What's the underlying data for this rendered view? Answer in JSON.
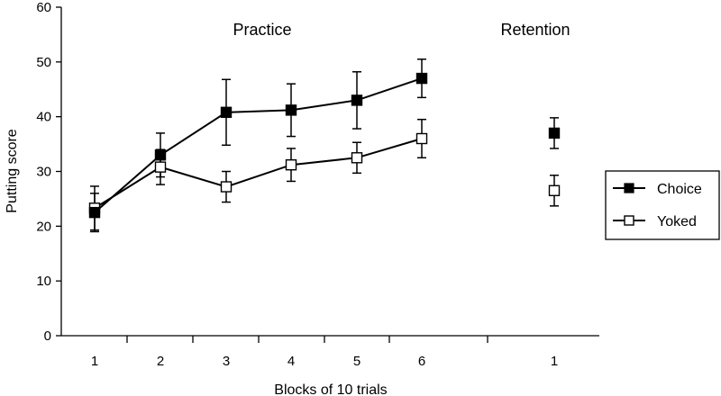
{
  "chart_data": {
    "type": "line",
    "xlabel": "Blocks of 10 trials",
    "ylabel": "Putting score",
    "ylim": [
      0,
      60
    ],
    "yticks": [
      0,
      10,
      20,
      30,
      40,
      50,
      60
    ],
    "sections": [
      {
        "label": "Practice",
        "categories": [
          "1",
          "2",
          "3",
          "4",
          "5",
          "6"
        ]
      },
      {
        "label": "Retention",
        "categories": [
          "1"
        ]
      }
    ],
    "series": [
      {
        "name": "Choice",
        "marker": "filled-square",
        "color": "#000000",
        "practice": [
          22.5,
          33,
          40.8,
          41.2,
          43,
          47
        ],
        "practice_error": [
          3.5,
          4,
          6,
          4.8,
          5.2,
          3.5
        ],
        "retention": [
          37
        ],
        "retention_error": [
          2.8
        ]
      },
      {
        "name": "Yoked",
        "marker": "open-square",
        "color": "#000000",
        "practice": [
          23.3,
          30.8,
          27.2,
          31.2,
          32.5,
          36
        ],
        "practice_error": [
          4,
          3.2,
          2.8,
          3,
          2.8,
          3.5
        ],
        "retention": [
          26.5
        ],
        "retention_error": [
          2.8
        ]
      }
    ],
    "legend_position": "right",
    "grid": false
  }
}
